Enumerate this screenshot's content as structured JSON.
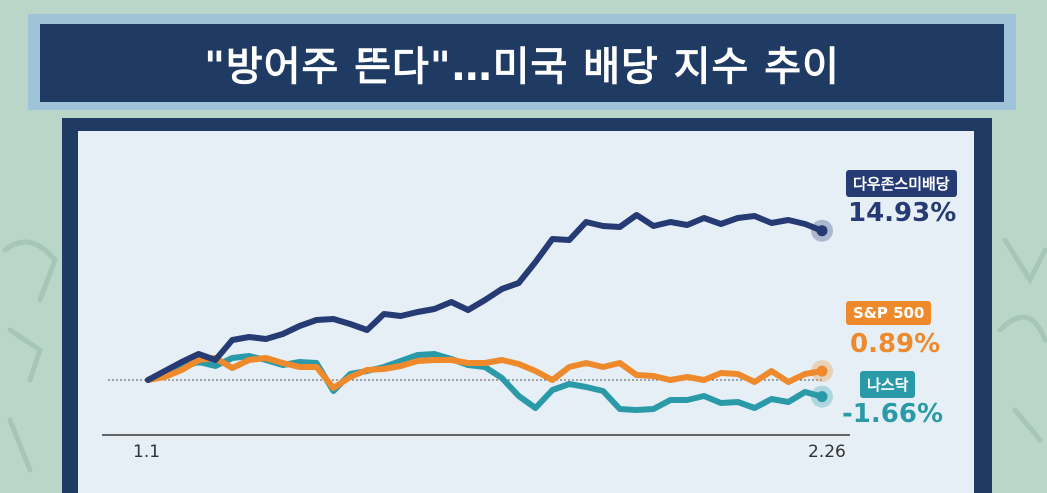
{
  "title": "\"방어주 뜬다\"…미국 배당 지수 추이",
  "chart_data": {
    "type": "line",
    "x_ticks": [
      "1.1",
      "2.26"
    ],
    "baseline": 0,
    "ylim": [
      -5,
      23
    ],
    "series": [
      {
        "name": "다우존스미배당",
        "value_label": "14.93%",
        "color": "#263a73",
        "values": [
          0,
          0.9,
          1.8,
          2.6,
          2.0,
          4.0,
          4.3,
          4.1,
          4.6,
          5.4,
          6.0,
          6.1,
          5.6,
          5.0,
          6.6,
          6.4,
          6.8,
          7.1,
          7.8,
          7.0,
          8.0,
          9.1,
          9.7,
          11.8,
          14.1,
          14.0,
          15.8,
          15.4,
          15.3,
          16.5,
          15.4,
          15.8,
          15.5,
          16.2,
          15.6,
          16.2,
          16.4,
          15.7,
          16.0,
          15.6,
          14.93
        ]
      },
      {
        "name": "S&P 500",
        "value_label": "0.89%",
        "color": "#ef8a2c",
        "values": [
          0,
          0.3,
          1.0,
          2.0,
          2.2,
          1.2,
          2.0,
          2.2,
          1.7,
          1.3,
          1.3,
          -0.8,
          0.3,
          1.0,
          1.1,
          1.4,
          1.9,
          2.0,
          2.0,
          1.7,
          1.7,
          2.0,
          1.6,
          0.9,
          0.0,
          1.3,
          1.7,
          1.3,
          1.7,
          0.5,
          0.4,
          0.0,
          0.3,
          0.0,
          0.7,
          0.6,
          -0.2,
          0.9,
          -0.2,
          0.6,
          0.89
        ]
      },
      {
        "name": "나스닥",
        "value_label": "-1.66%",
        "color": "#2b9aa8",
        "values": [
          0,
          0.5,
          1.3,
          1.8,
          1.4,
          2.2,
          2.4,
          2.0,
          1.5,
          1.8,
          1.7,
          -1.1,
          0.6,
          0.9,
          1.3,
          1.9,
          2.5,
          2.6,
          2.1,
          1.5,
          1.3,
          0.2,
          -1.6,
          -2.8,
          -1.0,
          -0.4,
          -0.7,
          -1.1,
          -2.9,
          -3.0,
          -2.9,
          -2.0,
          -2.0,
          -1.6,
          -2.3,
          -2.2,
          -2.8,
          -1.9,
          -2.2,
          -1.2,
          -1.66
        ]
      }
    ]
  }
}
